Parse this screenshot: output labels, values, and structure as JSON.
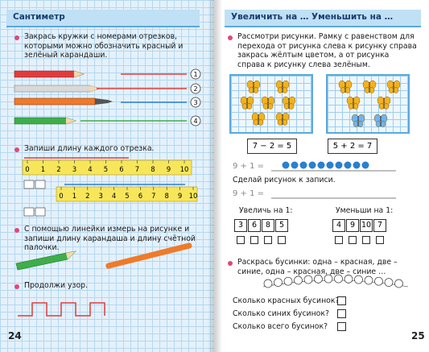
{
  "left_page": {
    "title": "Сантиметр",
    "tasks": [
      "Закрась кружки с номерами отрезков, которыми можно обозначить красный и зелёный карандаши.",
      "Запиши длину каждого отрезка.",
      "С помощью линейки измерь на рисунке и запиши длину карандаша и длину счётной палочки.",
      "Продолжи узор."
    ],
    "circle_numbers": [
      "1",
      "2",
      "3",
      "4"
    ],
    "ruler_labels": [
      "0",
      "1",
      "2",
      "3",
      "4",
      "5",
      "6",
      "7",
      "8",
      "9",
      "10"
    ],
    "page_number": "24"
  },
  "right_page": {
    "title": "Увеличить на … Уменьшить на …",
    "task1": "Рассмотри рисунки. Рамку с равенством для перехода от рисунка слева к рисунку справа закрась жёлтым цветом, а от рисунка справа к рисунку слева зелёным.",
    "equations": [
      "7 − 2 = 5",
      "5 + 2 = 7"
    ],
    "expression": "9 + 1 =",
    "draw_prompt": "Сделай рисунок к записи.",
    "increase": {
      "label": "Увеличь на 1:",
      "values": [
        3,
        6,
        8,
        5
      ]
    },
    "decrease": {
      "label": "Уменьши на 1:",
      "values": [
        4,
        9,
        10,
        7
      ]
    },
    "beads_task": "Раскрась бусинки: одна – красная, две – синие, одна – красная, две – синие …",
    "questions": [
      "Сколько красных бусинок?",
      "Сколько синих бусинок?",
      "Сколько всего бусинок?"
    ],
    "page_number": "25"
  }
}
